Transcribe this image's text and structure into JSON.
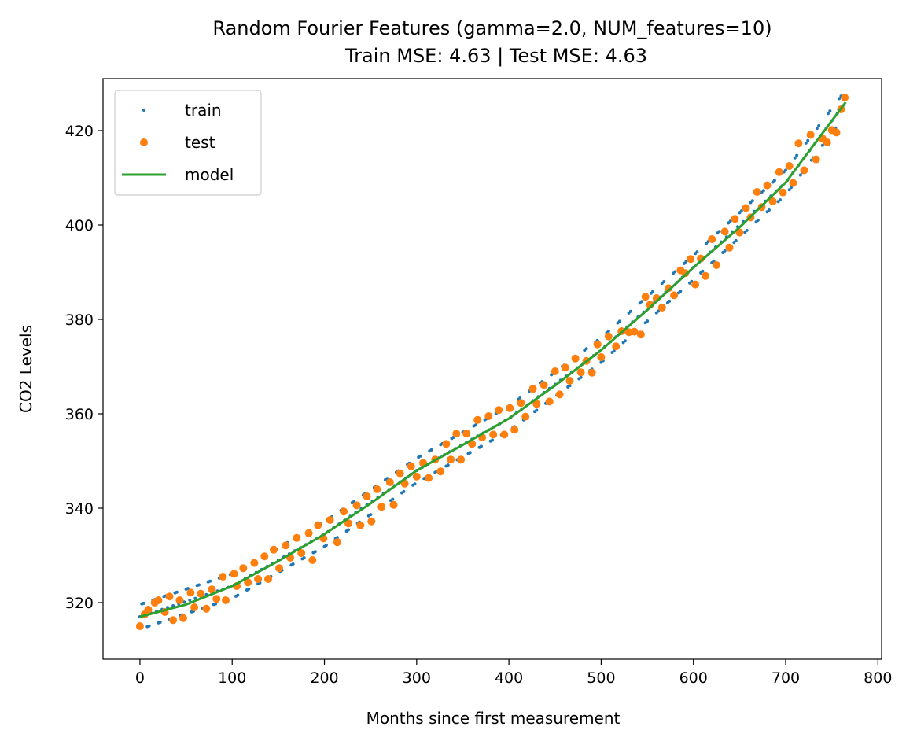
{
  "chart_data": {
    "type": "scatter",
    "title": "Random Fourier Features (gamma=2.0, NUM_features=10)",
    "subtitle": "Train MSE: 4.63 | Test MSE: 4.63",
    "xlabel": "Months since first measurement",
    "ylabel": "CO2 Levels",
    "xlim": [
      -40,
      804
    ],
    "ylim": [
      308,
      431
    ],
    "xticks": [
      0,
      100,
      200,
      300,
      400,
      500,
      600,
      700,
      800
    ],
    "yticks": [
      320,
      340,
      360,
      380,
      400,
      420
    ],
    "grid": false,
    "legend_position": "top-left",
    "series": [
      {
        "name": "train",
        "kind": "points",
        "color": "#1f77b4",
        "x_range": [
          0,
          763
        ],
        "step_months": 2,
        "trend": [
          [
            0,
            317.0
          ],
          [
            100,
            323.5
          ],
          [
            200,
            334.5
          ],
          [
            300,
            348.0
          ],
          [
            400,
            359.0
          ],
          [
            500,
            373.5
          ],
          [
            600,
            391.0
          ],
          [
            700,
            409.0
          ],
          [
            765,
            426.0
          ]
        ],
        "seasonal_amplitude": 3.0
      },
      {
        "name": "test",
        "kind": "points",
        "color": "#ff7f0e",
        "points": [
          [
            0,
            315.0
          ],
          [
            5,
            317.5
          ],
          [
            9,
            318.5
          ],
          [
            16,
            320.0
          ],
          [
            20,
            320.5
          ],
          [
            27,
            318.0
          ],
          [
            32,
            321.3
          ],
          [
            36,
            316.3
          ],
          [
            43,
            320.5
          ],
          [
            47,
            316.7
          ],
          [
            55,
            322.1
          ],
          [
            59,
            319.0
          ],
          [
            66,
            321.9
          ],
          [
            72,
            318.7
          ],
          [
            78,
            322.8
          ],
          [
            83,
            320.8
          ],
          [
            90,
            325.5
          ],
          [
            93,
            320.5
          ],
          [
            102,
            326.1
          ],
          [
            105,
            323.5
          ],
          [
            112,
            327.3
          ],
          [
            117,
            324.3
          ],
          [
            124,
            328.4
          ],
          [
            128,
            325.0
          ],
          [
            135,
            329.8
          ],
          [
            139,
            325.0
          ],
          [
            145,
            331.2
          ],
          [
            151,
            327.3
          ],
          [
            158,
            332.1
          ],
          [
            163,
            329.5
          ],
          [
            170,
            333.7
          ],
          [
            175,
            330.5
          ],
          [
            183,
            334.7
          ],
          [
            187,
            329.0
          ],
          [
            193,
            336.4
          ],
          [
            199,
            333.6
          ],
          [
            206,
            337.5
          ],
          [
            214,
            332.8
          ],
          [
            221,
            339.3
          ],
          [
            226,
            336.8
          ],
          [
            235,
            340.6
          ],
          [
            239,
            336.4
          ],
          [
            246,
            342.5
          ],
          [
            251,
            337.2
          ],
          [
            257,
            344.0
          ],
          [
            262,
            340.3
          ],
          [
            271,
            345.5
          ],
          [
            275,
            340.7
          ],
          [
            282,
            347.4
          ],
          [
            287,
            345.2
          ],
          [
            294,
            348.9
          ],
          [
            300,
            346.7
          ],
          [
            307,
            349.6
          ],
          [
            313,
            346.4
          ],
          [
            320,
            350.3
          ],
          [
            326,
            347.8
          ],
          [
            332,
            353.6
          ],
          [
            337,
            350.3
          ],
          [
            343,
            355.8
          ],
          [
            348,
            350.3
          ],
          [
            354,
            355.8
          ],
          [
            360,
            353.6
          ],
          [
            366,
            358.7
          ],
          [
            371,
            355.0
          ],
          [
            378,
            359.5
          ],
          [
            383,
            355.6
          ],
          [
            389,
            360.8
          ],
          [
            395,
            355.6
          ],
          [
            401,
            361.2
          ],
          [
            406,
            356.6
          ],
          [
            413,
            362.3
          ],
          [
            418,
            359.4
          ],
          [
            426,
            365.3
          ],
          [
            430,
            362.1
          ],
          [
            438,
            366.1
          ],
          [
            444,
            362.6
          ],
          [
            450,
            369.0
          ],
          [
            455,
            364.1
          ],
          [
            461,
            369.8
          ],
          [
            466,
            367.0
          ],
          [
            472,
            371.7
          ],
          [
            478,
            368.8
          ],
          [
            484,
            371.2
          ],
          [
            490,
            368.7
          ],
          [
            496,
            374.7
          ],
          [
            500,
            372.0
          ],
          [
            508,
            376.4
          ],
          [
            516,
            374.3
          ],
          [
            522,
            377.5
          ],
          [
            530,
            377.3
          ],
          [
            536,
            377.4
          ],
          [
            543,
            376.8
          ],
          [
            548,
            384.8
          ],
          [
            553,
            383.1
          ],
          [
            560,
            384.5
          ],
          [
            566,
            382.5
          ],
          [
            573,
            386.6
          ],
          [
            579,
            385.1
          ],
          [
            586,
            390.4
          ],
          [
            591,
            389.8
          ],
          [
            597,
            392.8
          ],
          [
            602,
            387.4
          ],
          [
            608,
            392.9
          ],
          [
            613,
            389.2
          ],
          [
            620,
            397.0
          ],
          [
            625,
            391.5
          ],
          [
            634,
            398.6
          ],
          [
            639,
            395.2
          ],
          [
            645,
            401.3
          ],
          [
            650,
            398.4
          ],
          [
            657,
            403.6
          ],
          [
            662,
            401.6
          ],
          [
            669,
            407.0
          ],
          [
            674,
            403.8
          ],
          [
            680,
            408.4
          ],
          [
            686,
            405.0
          ],
          [
            693,
            411.2
          ],
          [
            697,
            406.9
          ],
          [
            704,
            412.5
          ],
          [
            708,
            408.9
          ],
          [
            714,
            417.3
          ],
          [
            720,
            411.6
          ],
          [
            727,
            419.1
          ],
          [
            733,
            413.9
          ],
          [
            740,
            418.3
          ],
          [
            745,
            417.5
          ],
          [
            750,
            420.1
          ],
          [
            755,
            419.6
          ],
          [
            760,
            424.5
          ],
          [
            764,
            427.0
          ]
        ]
      },
      {
        "name": "model",
        "kind": "line",
        "color": "#2ca02c",
        "x": [
          0,
          50,
          100,
          150,
          200,
          250,
          300,
          350,
          400,
          450,
          500,
          550,
          600,
          650,
          700,
          765
        ],
        "values": [
          317.0,
          319.6,
          323.5,
          328.8,
          334.5,
          341.0,
          348.0,
          353.4,
          359.0,
          366.0,
          373.5,
          382.0,
          391.0,
          399.5,
          409.0,
          426.0
        ]
      }
    ]
  }
}
